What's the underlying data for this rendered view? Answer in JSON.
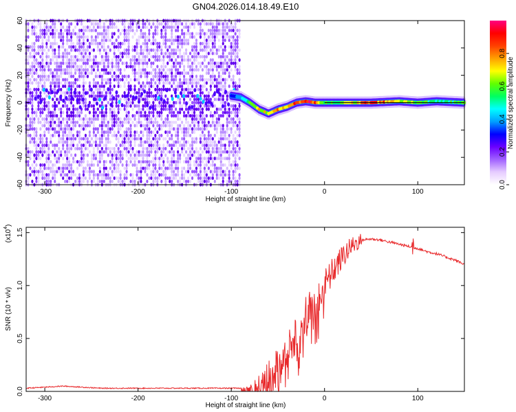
{
  "figure_title": "GN04.2026.014.18.49.E10",
  "chart_data": [
    {
      "type": "heatmap",
      "xlabel": "Height of straight line (km)",
      "ylabel": "Frequency (Hz)",
      "xlim": [
        -320,
        150
      ],
      "ylim": [
        -60,
        60
      ],
      "xticks": [
        -300,
        -200,
        -100,
        0,
        100
      ],
      "xtick_labels": [
        "-300",
        "-200",
        "-100",
        "0",
        "100"
      ],
      "yticks": [
        -60,
        -40,
        -20,
        0,
        20,
        40,
        60
      ],
      "ytick_labels": [
        "-60",
        "-40",
        "-20",
        "0",
        "20",
        "40",
        "60"
      ],
      "noise_region_x": [
        -320,
        -90
      ],
      "signal_track": {
        "x": [
          -100,
          -90,
          -80,
          -70,
          -60,
          -50,
          -40,
          -30,
          -20,
          -10,
          0,
          20,
          50,
          80,
          100,
          120,
          150
        ],
        "frequency": [
          5,
          4,
          0,
          -5,
          -8,
          -5,
          -3,
          0,
          1,
          0,
          0,
          0,
          0,
          1,
          0,
          1,
          0
        ],
        "amplitude": [
          0.3,
          0.4,
          0.55,
          0.7,
          0.75,
          0.75,
          0.8,
          0.85,
          0.9,
          0.85,
          0.6,
          0.6,
          0.9,
          0.7,
          0.6,
          0.5,
          0.6
        ]
      },
      "colorbar": {
        "label": "Normalized spectral amplitude",
        "ticks": [
          0.0,
          0.2,
          0.4,
          0.6,
          0.8
        ],
        "tick_labels": [
          "0.0",
          "0.2",
          "0.4",
          "0.6",
          "0.8"
        ],
        "range": [
          0,
          1
        ],
        "colors": [
          "#ffffff",
          "#e6ccff",
          "#a060ff",
          "#6a00ff",
          "#0000ff",
          "#00a0ff",
          "#00ffff",
          "#00ff60",
          "#60ff00",
          "#ffff00",
          "#ffa000",
          "#ff4000",
          "#ff0000",
          "#ff0080"
        ]
      },
      "grid": false
    },
    {
      "type": "line",
      "xlabel": "Height of straight line (km)",
      "ylabel": "SNR (10 * v/v)",
      "y_multiplier_label": "(x10",
      "y_multiplier_exponent": "4",
      "y_multiplier_close": ")",
      "xlim": [
        -320,
        150
      ],
      "ylim": [
        0,
        1.55
      ],
      "xticks": [
        -300,
        -200,
        -100,
        0,
        100
      ],
      "xtick_labels": [
        "-300",
        "-200",
        "-100",
        "0",
        "100"
      ],
      "yticks": [
        0.0,
        0.5,
        1.0,
        1.5
      ],
      "ytick_labels": [
        "0.0",
        "0.5",
        "1.0",
        "1.5"
      ],
      "series": [
        {
          "color": "#e8282a",
          "x": [
            -320,
            -300,
            -280,
            -260,
            -240,
            -220,
            -200,
            -180,
            -160,
            -140,
            -120,
            -100,
            -90,
            -80,
            -70,
            -60,
            -50,
            -40,
            -30,
            -20,
            -10,
            0,
            10,
            20,
            30,
            40,
            50,
            60,
            70,
            80,
            90,
            100,
            110,
            120,
            130,
            140,
            150
          ],
          "y": [
            0.03,
            0.04,
            0.05,
            0.04,
            0.03,
            0.03,
            0.03,
            0.03,
            0.03,
            0.03,
            0.03,
            0.03,
            0.03,
            0.04,
            0.08,
            0.2,
            0.3,
            0.4,
            0.55,
            0.7,
            0.85,
            1.0,
            1.15,
            1.28,
            1.38,
            1.43,
            1.44,
            1.43,
            1.41,
            1.39,
            1.37,
            1.35,
            1.32,
            1.3,
            1.27,
            1.24,
            1.2
          ]
        }
      ],
      "grid": false
    }
  ]
}
